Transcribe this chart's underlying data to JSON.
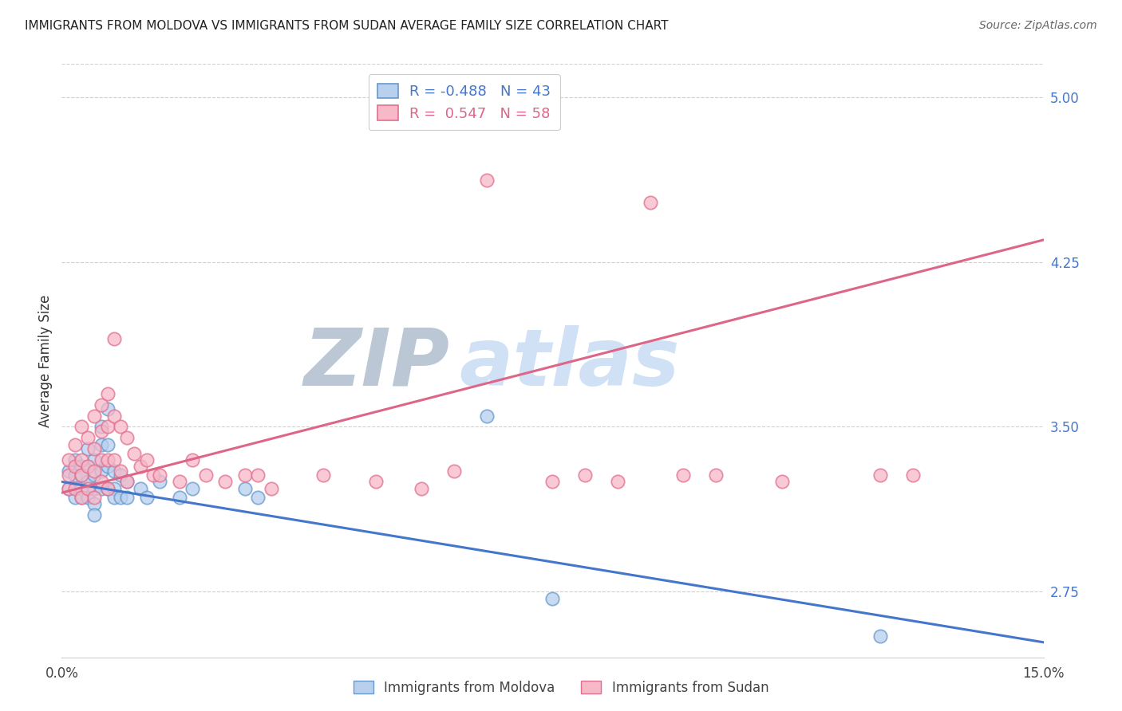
{
  "title": "IMMIGRANTS FROM MOLDOVA VS IMMIGRANTS FROM SUDAN AVERAGE FAMILY SIZE CORRELATION CHART",
  "source": "Source: ZipAtlas.com",
  "ylabel": "Average Family Size",
  "xlim": [
    0.0,
    0.15
  ],
  "ylim": [
    2.45,
    5.15
  ],
  "xticks": [
    0.0,
    0.05,
    0.1,
    0.15
  ],
  "xticklabels": [
    "0.0%",
    "",
    "",
    "15.0%"
  ],
  "right_yticks": [
    2.75,
    3.5,
    4.25,
    5.0
  ],
  "right_yticklabels": [
    "2.75",
    "3.50",
    "4.25",
    "5.00"
  ],
  "grid_color": "#d0d0d0",
  "background_color": "#ffffff",
  "moldova_color": "#b8d0ee",
  "moldova_edge_color": "#6699cc",
  "sudan_color": "#f7b8c8",
  "sudan_edge_color": "#e07090",
  "moldova_line_color": "#4477cc",
  "sudan_line_color": "#dd6688",
  "watermark_zip_color": "#b8c8e0",
  "watermark_atlas_color": "#c8daf0",
  "moldova_label": "Immigrants from Moldova",
  "sudan_label": "Immigrants from Sudan",
  "moldova_R": -0.488,
  "moldova_N": 43,
  "sudan_R": 0.547,
  "sudan_N": 58,
  "moldova_x": [
    0.001,
    0.001,
    0.002,
    0.002,
    0.002,
    0.003,
    0.003,
    0.003,
    0.003,
    0.004,
    0.004,
    0.004,
    0.004,
    0.005,
    0.005,
    0.005,
    0.005,
    0.005,
    0.006,
    0.006,
    0.006,
    0.006,
    0.007,
    0.007,
    0.007,
    0.007,
    0.008,
    0.008,
    0.008,
    0.009,
    0.009,
    0.01,
    0.01,
    0.012,
    0.013,
    0.015,
    0.018,
    0.02,
    0.028,
    0.03,
    0.065,
    0.075,
    0.125
  ],
  "moldova_y": [
    3.3,
    3.22,
    3.35,
    3.28,
    3.18,
    3.32,
    3.22,
    3.28,
    3.18,
    3.4,
    3.32,
    3.25,
    3.18,
    3.35,
    3.28,
    3.22,
    3.15,
    3.1,
    3.5,
    3.42,
    3.3,
    3.22,
    3.58,
    3.42,
    3.32,
    3.22,
    3.3,
    3.22,
    3.18,
    3.28,
    3.18,
    3.25,
    3.18,
    3.22,
    3.18,
    3.25,
    3.18,
    3.22,
    3.22,
    3.18,
    3.55,
    2.72,
    2.55
  ],
  "sudan_x": [
    0.001,
    0.001,
    0.001,
    0.002,
    0.002,
    0.002,
    0.003,
    0.003,
    0.003,
    0.003,
    0.004,
    0.004,
    0.004,
    0.005,
    0.005,
    0.005,
    0.005,
    0.006,
    0.006,
    0.006,
    0.006,
    0.007,
    0.007,
    0.007,
    0.007,
    0.008,
    0.008,
    0.008,
    0.009,
    0.009,
    0.01,
    0.01,
    0.011,
    0.012,
    0.013,
    0.014,
    0.015,
    0.018,
    0.02,
    0.022,
    0.025,
    0.028,
    0.03,
    0.032,
    0.04,
    0.048,
    0.055,
    0.06,
    0.065,
    0.075,
    0.08,
    0.085,
    0.09,
    0.095,
    0.1,
    0.11,
    0.125,
    0.13
  ],
  "sudan_y": [
    3.28,
    3.35,
    3.22,
    3.42,
    3.32,
    3.22,
    3.5,
    3.35,
    3.28,
    3.18,
    3.45,
    3.32,
    3.22,
    3.55,
    3.4,
    3.3,
    3.18,
    3.6,
    3.48,
    3.35,
    3.25,
    3.65,
    3.5,
    3.35,
    3.22,
    3.9,
    3.55,
    3.35,
    3.5,
    3.3,
    3.45,
    3.25,
    3.38,
    3.32,
    3.35,
    3.28,
    3.28,
    3.25,
    3.35,
    3.28,
    3.25,
    3.28,
    3.28,
    3.22,
    3.28,
    3.25,
    3.22,
    3.3,
    4.62,
    3.25,
    3.28,
    3.25,
    4.52,
    3.28,
    3.28,
    3.25,
    3.28,
    3.28
  ]
}
